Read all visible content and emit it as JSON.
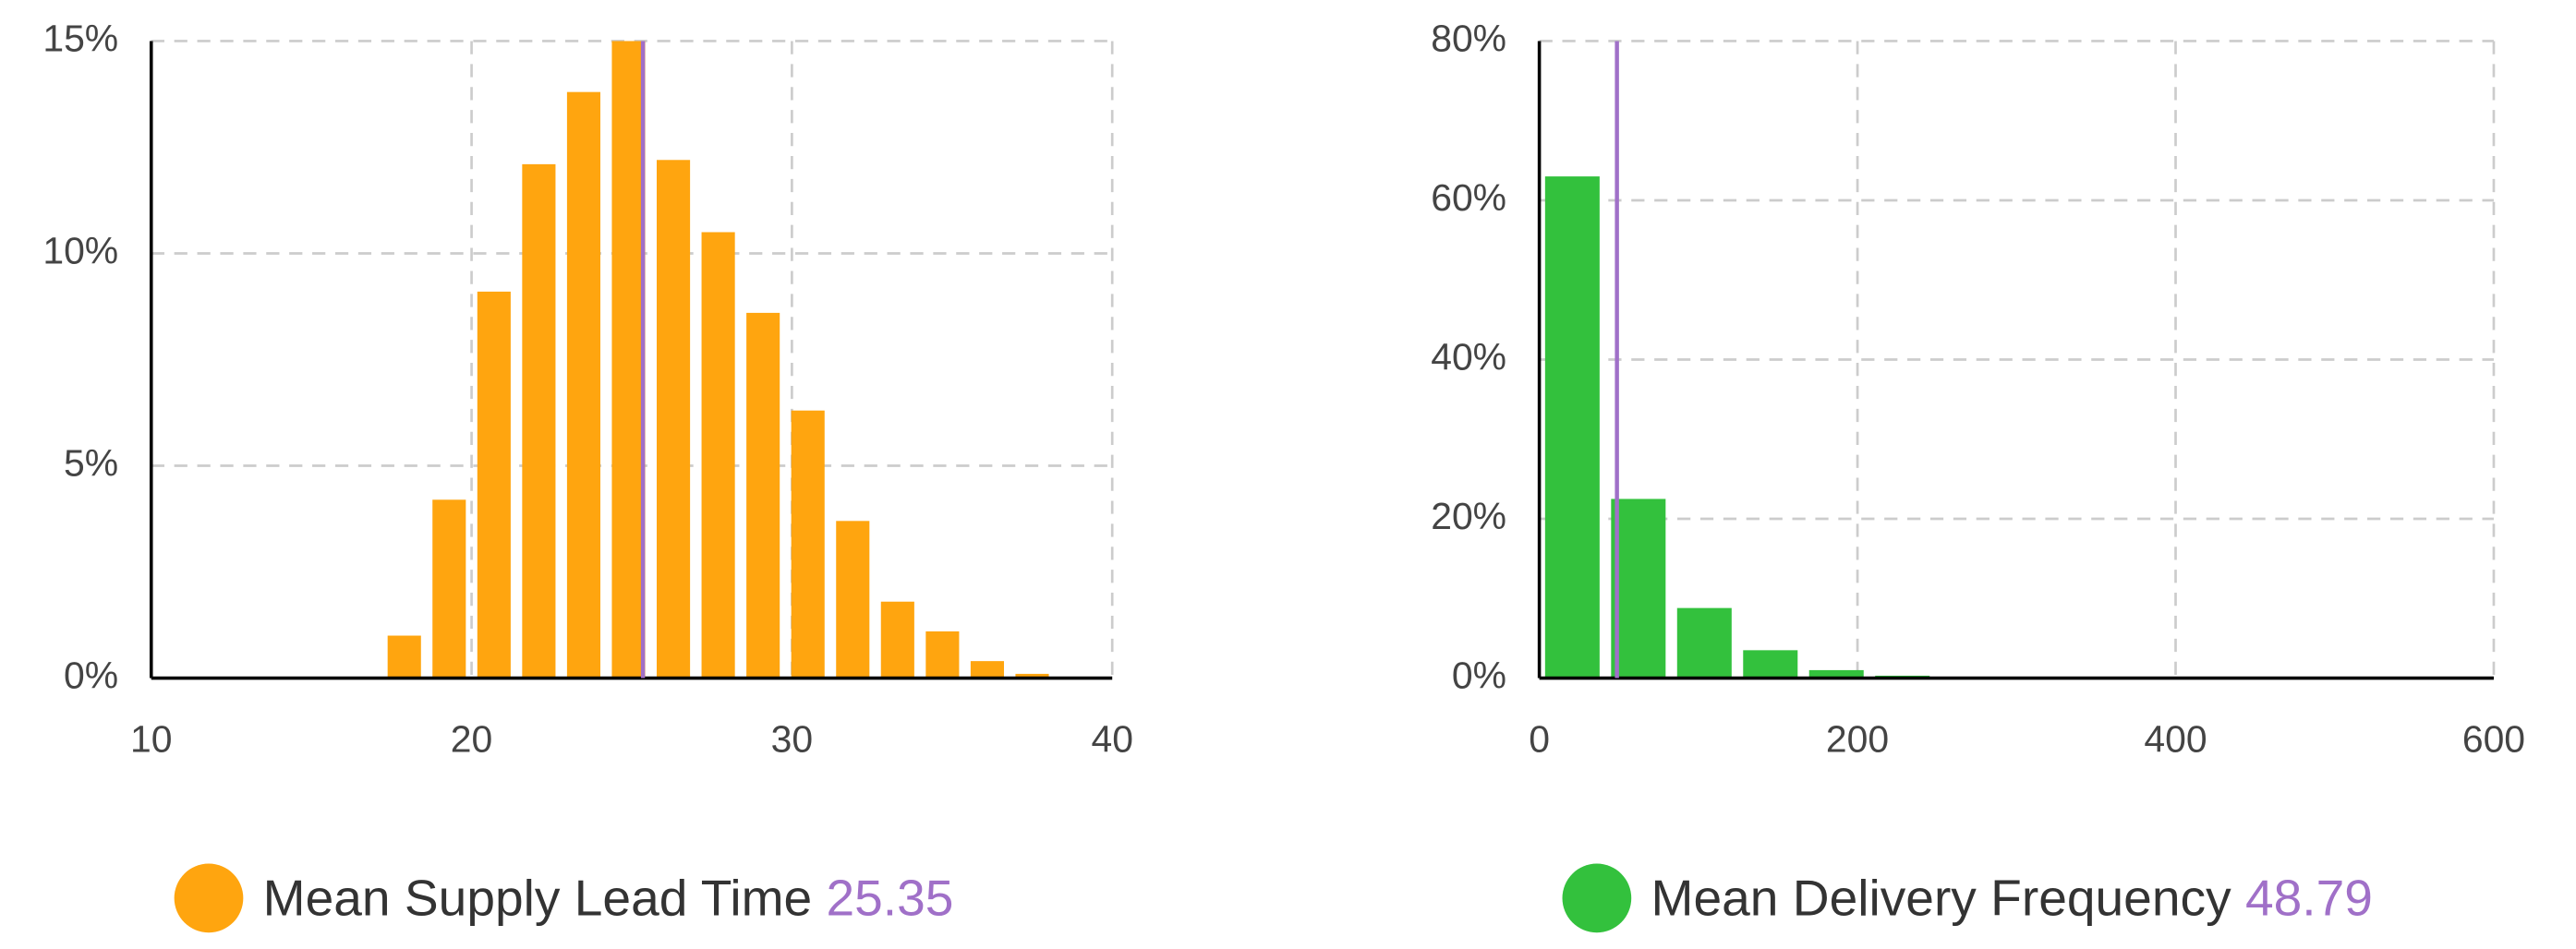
{
  "chart_data": [
    {
      "type": "histogram",
      "bins": [
        17.2,
        18.6,
        20.0,
        21.4,
        22.8,
        24.2,
        25.6,
        27.0,
        28.4,
        29.8,
        31.2,
        32.6,
        34.0,
        35.4,
        36.8,
        38.2
      ],
      "values": [
        1.0,
        4.2,
        9.1,
        12.1,
        13.8,
        15.0,
        12.2,
        10.5,
        8.6,
        6.3,
        3.7,
        1.8,
        1.1,
        0.4,
        0.1
      ],
      "color": "#ffa50f",
      "xlim": [
        10,
        40
      ],
      "xticks": [
        10,
        20,
        30,
        40
      ],
      "ylim": [
        0,
        15
      ],
      "yticks": [
        {
          "value": 0,
          "label": "0%"
        },
        {
          "value": 5,
          "label": "5%"
        },
        {
          "value": 10,
          "label": "10%"
        },
        {
          "value": 15,
          "label": "15%"
        }
      ],
      "grid": true,
      "legend_label": "Mean Supply Lead Time",
      "mean": 25.35,
      "mean_color": "#a070c8"
    },
    {
      "type": "histogram",
      "bins": [
        0,
        41.5,
        83,
        124.5,
        166,
        207.5,
        249
      ],
      "values": [
        63,
        22.5,
        8.8,
        3.5,
        1.0,
        0.3
      ],
      "color": "#33c13d",
      "xlim": [
        0,
        600
      ],
      "xticks": [
        0,
        200,
        400,
        600
      ],
      "ylim": [
        0,
        80
      ],
      "yticks": [
        {
          "value": 0,
          "label": "0%"
        },
        {
          "value": 20,
          "label": "20%"
        },
        {
          "value": 40,
          "label": "40%"
        },
        {
          "value": 60,
          "label": "60%"
        },
        {
          "value": 80,
          "label": "80%"
        }
      ],
      "grid": true,
      "legend_label": "Mean Delivery Frequency",
      "mean": 48.79,
      "mean_color": "#a070c8"
    }
  ]
}
